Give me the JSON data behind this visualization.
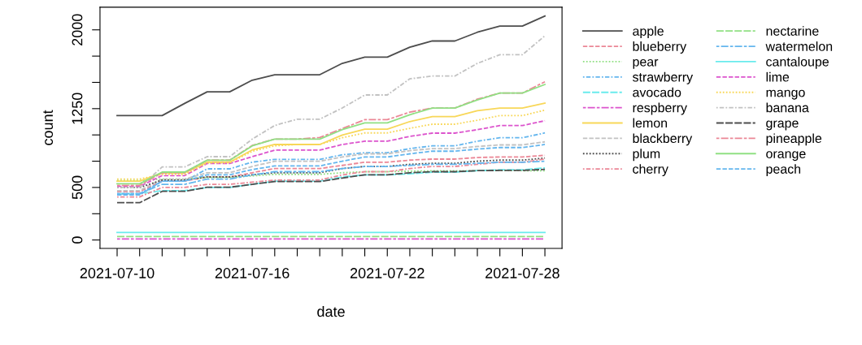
{
  "chart_data": {
    "type": "line",
    "xlabel": "date",
    "ylabel": "count",
    "legend": "right",
    "grid": false,
    "x": [
      "2021-07-10",
      "2021-07-11",
      "2021-07-12",
      "2021-07-13",
      "2021-07-14",
      "2021-07-15",
      "2021-07-16",
      "2021-07-17",
      "2021-07-18",
      "2021-07-19",
      "2021-07-20",
      "2021-07-21",
      "2021-07-22",
      "2021-07-23",
      "2021-07-24",
      "2021-07-25",
      "2021-07-26",
      "2021-07-27",
      "2021-07-28",
      "2021-07-29"
    ],
    "xlim": [
      "2021-07-09T05:45",
      "2021-07-29T18:15"
    ],
    "xticks": [
      {
        "value": "2021-07-10",
        "label": "2021-07-10"
      },
      {
        "value": "2021-07-11",
        "label": null
      },
      {
        "value": "2021-07-12",
        "label": null
      },
      {
        "value": "2021-07-13",
        "label": null
      },
      {
        "value": "2021-07-14",
        "label": null
      },
      {
        "value": "2021-07-15",
        "label": null
      },
      {
        "value": "2021-07-16",
        "label": "2021-07-16"
      },
      {
        "value": "2021-07-17",
        "label": null
      },
      {
        "value": "2021-07-18",
        "label": null
      },
      {
        "value": "2021-07-19",
        "label": null
      },
      {
        "value": "2021-07-20",
        "label": null
      },
      {
        "value": "2021-07-21",
        "label": null
      },
      {
        "value": "2021-07-22",
        "label": "2021-07-22"
      },
      {
        "value": "2021-07-23",
        "label": null
      },
      {
        "value": "2021-07-24",
        "label": null
      },
      {
        "value": "2021-07-25",
        "label": null
      },
      {
        "value": "2021-07-26",
        "label": null
      },
      {
        "value": "2021-07-27",
        "label": null
      },
      {
        "value": "2021-07-28",
        "label": "2021-07-28"
      },
      {
        "value": "2021-07-29",
        "label": null
      }
    ],
    "ylim": [
      -80,
      2215
    ],
    "yticks": [
      0,
      {
        "value": 250,
        "label": null
      },
      500,
      {
        "value": 750,
        "label": null
      },
      {
        "value": 1000,
        "label": null
      },
      1250,
      {
        "value": 1500,
        "label": null
      },
      {
        "value": 1750,
        "label": null
      },
      2000
    ],
    "series": [
      {
        "name": "apple",
        "color": "#4d4d4d",
        "line_style": "solid",
        "values": [
          1184,
          1184,
          1184,
          1300,
          1410,
          1410,
          1521,
          1573,
          1573,
          1573,
          1681,
          1740,
          1740,
          1835,
          1894,
          1894,
          1977,
          2036,
          2036,
          2131
        ]
      },
      {
        "name": "blueberry",
        "color": "#eb8796",
        "line_style": "dashed",
        "values": [
          460,
          460,
          560,
          560,
          600,
          600,
          640,
          680,
          680,
          680,
          710,
          740,
          740,
          760,
          770,
          770,
          785,
          790,
          790,
          806
        ]
      },
      {
        "name": "pear",
        "color": "#90e083",
        "line_style": "dotted",
        "values": [
          566,
          566,
          580,
          580,
          595,
          595,
          610,
          625,
          625,
          625,
          640,
          650,
          650,
          655,
          658,
          658,
          660,
          660,
          660,
          658
        ]
      },
      {
        "name": "strawberry",
        "color": "#64b6ee",
        "line_style": "dashdot",
        "values": [
          440,
          440,
          560,
          560,
          677,
          677,
          741,
          767,
          767,
          767,
          811,
          831,
          831,
          870,
          896,
          896,
          940,
          973,
          973,
          1019
        ]
      },
      {
        "name": "avocado",
        "color": "#69ebed",
        "line_style": "longdash",
        "values": [
          440,
          440,
          470,
          470,
          500,
          500,
          530,
          560,
          560,
          560,
          600,
          620,
          620,
          630,
          645,
          645,
          660,
          668,
          668,
          686
        ]
      },
      {
        "name": "respberry",
        "color": "#dc54cd",
        "line_style": "twodash",
        "values": [
          10,
          10,
          10,
          10,
          10,
          10,
          10,
          10,
          10,
          10,
          10,
          10,
          10,
          10,
          10,
          10,
          10,
          10,
          10,
          10
        ]
      },
      {
        "name": "lemon",
        "color": "#f8d758",
        "line_style": "solid",
        "values": [
          560,
          560,
          638,
          638,
          741,
          741,
          857,
          909,
          909,
          909,
          999,
          1055,
          1055,
          1127,
          1174,
          1174,
          1230,
          1256,
          1256,
          1302
        ]
      },
      {
        "name": "blackberry",
        "color": "#c2c2c2",
        "line_style": "dashed",
        "values": [
          470,
          470,
          580,
          580,
          640,
          640,
          700,
          749,
          749,
          749,
          790,
          820,
          820,
          850,
          870,
          870,
          890,
          905,
          905,
          934
        ]
      },
      {
        "name": "plum",
        "color": "#4d4d4d",
        "line_style": "dotted",
        "values": [
          500,
          500,
          570,
          570,
          600,
          600,
          620,
          640,
          640,
          640,
          680,
          700,
          700,
          720,
          730,
          730,
          750,
          760,
          760,
          780
        ]
      },
      {
        "name": "cherry",
        "color": "#eb8796",
        "line_style": "dashdot",
        "values": [
          410,
          410,
          500,
          500,
          530,
          530,
          550,
          570,
          570,
          570,
          620,
          650,
          650,
          680,
          700,
          700,
          720,
          740,
          740,
          770
        ]
      },
      {
        "name": "nectarine",
        "color": "#90e083",
        "line_style": "longdash",
        "values": [
          33,
          33,
          33,
          33,
          33,
          33,
          33,
          33,
          33,
          33,
          33,
          33,
          33,
          33,
          33,
          33,
          33,
          33,
          33,
          33
        ]
      },
      {
        "name": "watermelon",
        "color": "#64b6ee",
        "line_style": "twodash",
        "values": [
          440,
          440,
          530,
          530,
          580,
          580,
          620,
          650,
          650,
          650,
          680,
          700,
          700,
          710,
          720,
          720,
          730,
          740,
          740,
          749
        ]
      },
      {
        "name": "cantaloupe",
        "color": "#69ebed",
        "line_style": "solid",
        "values": [
          72,
          72,
          72,
          72,
          72,
          72,
          72,
          72,
          72,
          72,
          72,
          72,
          72,
          72,
          72,
          72,
          72,
          72,
          72,
          72
        ]
      },
      {
        "name": "lime",
        "color": "#dc54cd",
        "line_style": "dashed",
        "values": [
          510,
          510,
          613,
          613,
          728,
          728,
          793,
          855,
          855,
          855,
          909,
          940,
          940,
          986,
          1017,
          1017,
          1050,
          1089,
          1089,
          1135
        ]
      },
      {
        "name": "mango",
        "color": "#f8d758",
        "line_style": "dotted",
        "values": [
          580,
          580,
          625,
          625,
          734,
          734,
          844,
          896,
          909,
          909,
          973,
          1019,
          1019,
          1063,
          1102,
          1102,
          1140,
          1184,
          1184,
          1236
        ]
      },
      {
        "name": "banana",
        "color": "#c2c2c2",
        "line_style": "dashdot",
        "values": [
          500,
          500,
          695,
          695,
          793,
          793,
          960,
          1090,
          1150,
          1150,
          1256,
          1380,
          1380,
          1534,
          1560,
          1560,
          1681,
          1763,
          1763,
          1943
        ]
      },
      {
        "name": "grape",
        "color": "#4d4d4d",
        "line_style": "longdash",
        "values": [
          355,
          355,
          463,
          463,
          502,
          502,
          530,
          556,
          556,
          556,
          590,
          620,
          620,
          640,
          650,
          650,
          660,
          662,
          662,
          672
        ]
      },
      {
        "name": "pineapple",
        "color": "#eb8796",
        "line_style": "twodash",
        "values": [
          520,
          520,
          640,
          640,
          760,
          760,
          900,
          960,
          960,
          975,
          1060,
          1145,
          1145,
          1217,
          1256,
          1256,
          1340,
          1398,
          1398,
          1506
        ]
      },
      {
        "name": "orange",
        "color": "#90e083",
        "line_style": "solid",
        "values": [
          535,
          535,
          646,
          646,
          759,
          759,
          896,
          960,
          960,
          960,
          1050,
          1115,
          1115,
          1192,
          1256,
          1256,
          1333,
          1398,
          1398,
          1480
        ]
      },
      {
        "name": "peach",
        "color": "#64b6ee",
        "line_style": "dashed",
        "values": [
          430,
          430,
          560,
          560,
          620,
          620,
          670,
          705,
          705,
          705,
          750,
          790,
          790,
          820,
          845,
          845,
          865,
          880,
          880,
          909
        ]
      }
    ]
  }
}
